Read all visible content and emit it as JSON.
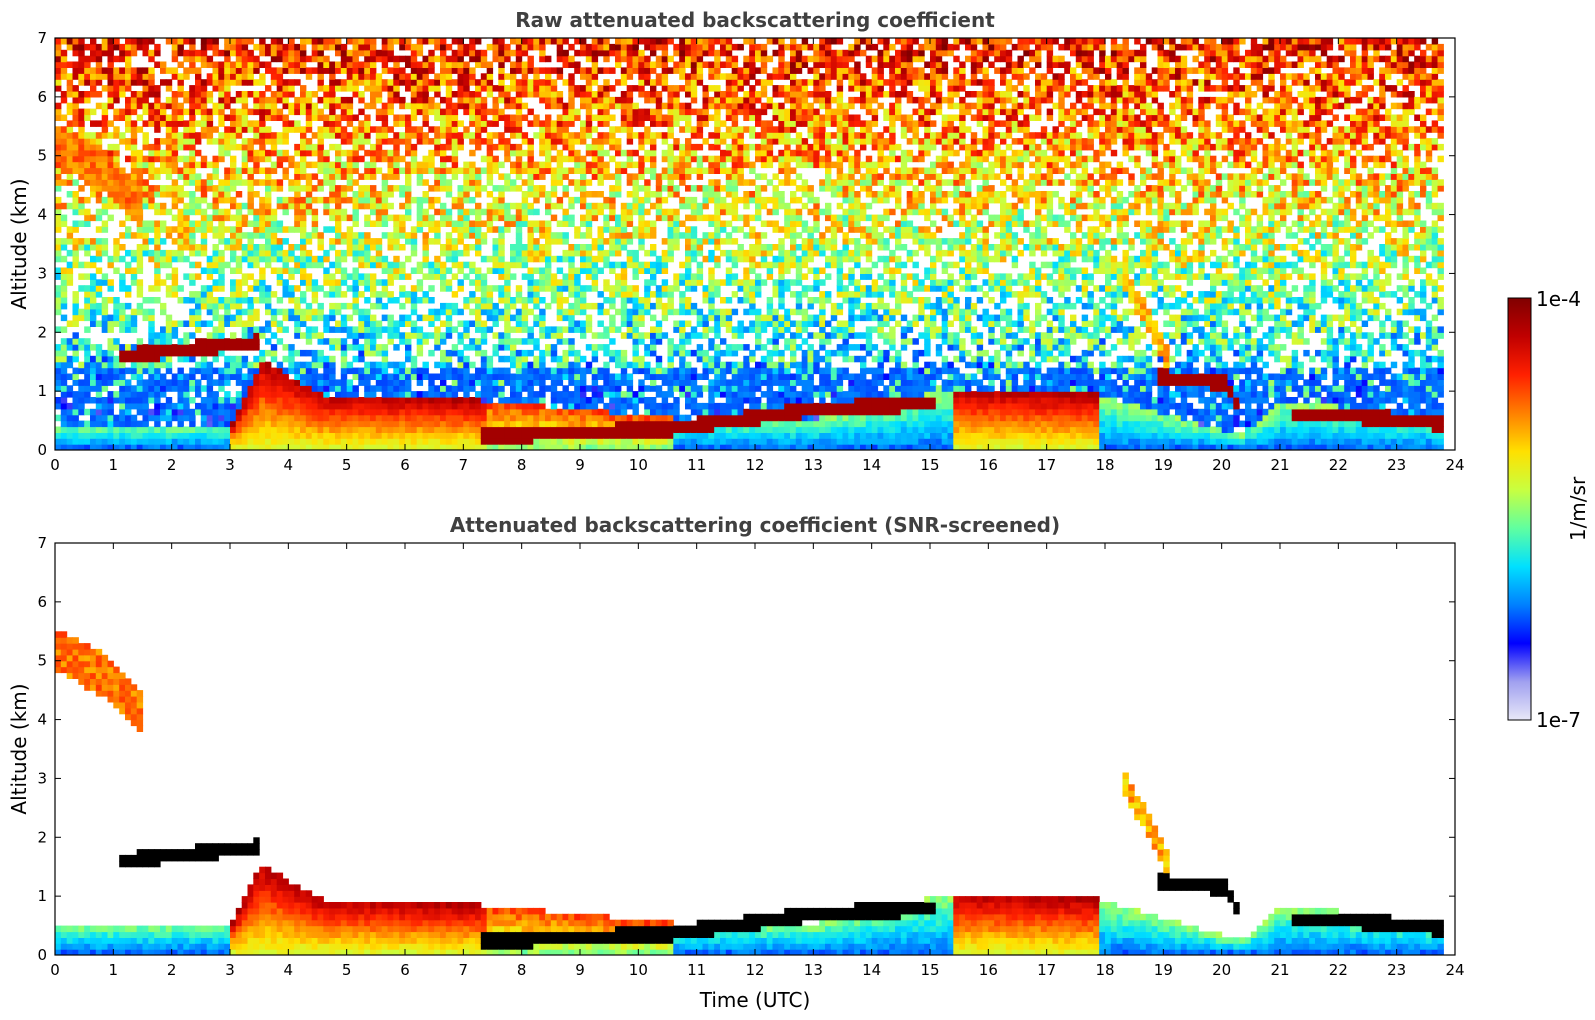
{
  "chart_data": [
    {
      "type": "heatmap",
      "title": "Raw attenuated backscattering coefficient",
      "xlabel": "",
      "ylabel": "Altitude (km)",
      "xlim": [
        0,
        24
      ],
      "ylim": [
        0,
        7
      ],
      "x_ticks": [
        "0",
        "1",
        "2",
        "3",
        "4",
        "5",
        "6",
        "7",
        "8",
        "9",
        "10",
        "11",
        "12",
        "13",
        "14",
        "15",
        "16",
        "17",
        "18",
        "19",
        "20",
        "21",
        "22",
        "23",
        "24"
      ],
      "y_ticks": [
        "0",
        "1",
        "2",
        "3",
        "4",
        "5",
        "6",
        "7"
      ],
      "colormap": "jet",
      "screened": false,
      "data_end_time": 23.8,
      "features": [
        {
          "kind": "boundary_layer",
          "values": [
            [
              0,
              0.4
            ],
            [
              3,
              0.4
            ],
            [
              3.5,
              1.5
            ],
            [
              4.5,
              0.9
            ],
            [
              7.2,
              0.8
            ],
            [
              10.5,
              0.5
            ],
            [
              13,
              0.5
            ],
            [
              15.3,
              1.0
            ],
            [
              17.8,
              0.9
            ],
            [
              20.3,
              0.2
            ],
            [
              21,
              0.8
            ],
            [
              23.8,
              0.5
            ]
          ]
        },
        {
          "kind": "cloud_layer",
          "values": [
            [
              1.0,
              1.55
            ],
            [
              3.0,
              1.75
            ],
            [
              3.5,
              1.8
            ]
          ]
        },
        {
          "kind": "cloud_layer",
          "values": [
            [
              7.2,
              0.18
            ],
            [
              10.5,
              0.32
            ],
            [
              13,
              0.65
            ],
            [
              15,
              0.75
            ]
          ]
        },
        {
          "kind": "cloud_layer",
          "values": [
            [
              18.8,
              1.2
            ],
            [
              20,
              1.1
            ],
            [
              20.3,
              0.6
            ]
          ]
        },
        {
          "kind": "cloud_layer",
          "values": [
            [
              21.2,
              0.55
            ],
            [
              22,
              0.55
            ],
            [
              23.8,
              0.4
            ]
          ]
        },
        {
          "kind": "elevated_aerosol",
          "values": [
            [
              0,
              5.1
            ],
            [
              0.8,
              4.7
            ],
            [
              1.5,
              4.0
            ]
          ]
        },
        {
          "kind": "cirrus_streak",
          "values": [
            [
              18.2,
              3.0
            ],
            [
              19,
              1.6
            ]
          ]
        }
      ]
    },
    {
      "type": "heatmap",
      "title": "Attenuated backscattering coefficient (SNR-screened)",
      "xlabel": "Time (UTC)",
      "ylabel": "Altitude (km)",
      "xlim": [
        0,
        24
      ],
      "ylim": [
        0,
        7
      ],
      "x_ticks": [
        "0",
        "1",
        "2",
        "3",
        "4",
        "5",
        "6",
        "7",
        "8",
        "9",
        "10",
        "11",
        "12",
        "13",
        "14",
        "15",
        "16",
        "17",
        "18",
        "19",
        "20",
        "21",
        "22",
        "23",
        "24"
      ],
      "y_ticks": [
        "0",
        "1",
        "2",
        "3",
        "4",
        "5",
        "6",
        "7"
      ],
      "colormap": "jet",
      "screened": true,
      "data_end_time": 23.8,
      "features": [
        {
          "kind": "boundary_layer",
          "values": [
            [
              0,
              0.5
            ],
            [
              3,
              0.5
            ],
            [
              3.5,
              1.5
            ],
            [
              4.5,
              0.9
            ],
            [
              7.2,
              0.8
            ],
            [
              10.5,
              0.5
            ],
            [
              13,
              0.5
            ],
            [
              15.3,
              1.0
            ],
            [
              17.8,
              0.9
            ],
            [
              20.3,
              0.2
            ],
            [
              21,
              0.8
            ],
            [
              23.8,
              0.5
            ]
          ]
        },
        {
          "kind": "cloud_layer",
          "values": [
            [
              1.0,
              1.55
            ],
            [
              3.0,
              1.75
            ],
            [
              3.5,
              1.8
            ]
          ]
        },
        {
          "kind": "cloud_layer",
          "values": [
            [
              7.2,
              0.18
            ],
            [
              10.5,
              0.32
            ],
            [
              13,
              0.65
            ],
            [
              15,
              0.75
            ]
          ]
        },
        {
          "kind": "cloud_layer",
          "values": [
            [
              18.8,
              1.2
            ],
            [
              20,
              1.1
            ],
            [
              20.3,
              0.6
            ]
          ]
        },
        {
          "kind": "cloud_layer",
          "values": [
            [
              21.2,
              0.55
            ],
            [
              22,
              0.55
            ],
            [
              23.8,
              0.4
            ]
          ]
        },
        {
          "kind": "elevated_aerosol",
          "values": [
            [
              0,
              5.1
            ],
            [
              0.8,
              4.7
            ],
            [
              1.5,
              4.0
            ]
          ]
        },
        {
          "kind": "cirrus_streak",
          "values": [
            [
              18.2,
              3.0
            ],
            [
              19,
              1.6
            ]
          ]
        }
      ]
    }
  ],
  "colorbar": {
    "label": "1/m/sr",
    "max_label": "1e-4",
    "min_label": "1e-7",
    "range": [
      1e-07,
      0.0001
    ],
    "scale": "log",
    "stops": [
      "#e8e8f8",
      "#a0a0f0",
      "#0000ff",
      "#0080ff",
      "#00e0ff",
      "#60ffa0",
      "#c8ff40",
      "#ffe000",
      "#ff8000",
      "#ff2000",
      "#c00000",
      "#800000"
    ]
  }
}
